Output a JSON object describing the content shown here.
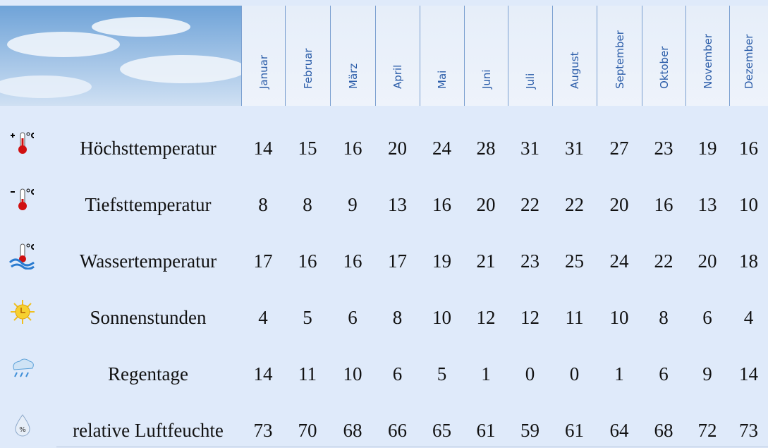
{
  "table": {
    "months": [
      "Januar",
      "Februar",
      "März",
      "April",
      "Mai",
      "Juni",
      "Juli",
      "August",
      "September",
      "Oktober",
      "November",
      "Dezember"
    ],
    "rows": [
      {
        "label": "Höchsttemperatur",
        "values": [
          14,
          15,
          16,
          20,
          24,
          28,
          31,
          31,
          27,
          23,
          19,
          16
        ]
      },
      {
        "label": "Tiefsttemperatur",
        "values": [
          8,
          8,
          9,
          13,
          16,
          20,
          22,
          22,
          20,
          16,
          13,
          10
        ]
      },
      {
        "label": "Wassertemperatur",
        "values": [
          17,
          16,
          16,
          17,
          19,
          21,
          23,
          25,
          24,
          22,
          20,
          18
        ]
      },
      {
        "label": "Sonnenstunden",
        "values": [
          4,
          5,
          6,
          8,
          10,
          12,
          12,
          11,
          10,
          8,
          6,
          4
        ]
      },
      {
        "label": "Regentage",
        "values": [
          14,
          11,
          10,
          6,
          5,
          1,
          0,
          0,
          1,
          6,
          9,
          14
        ]
      },
      {
        "label": "relative Luftfeuchte",
        "values": [
          73,
          70,
          68,
          66,
          65,
          61,
          59,
          61,
          64,
          68,
          72,
          73
        ]
      }
    ]
  }
}
